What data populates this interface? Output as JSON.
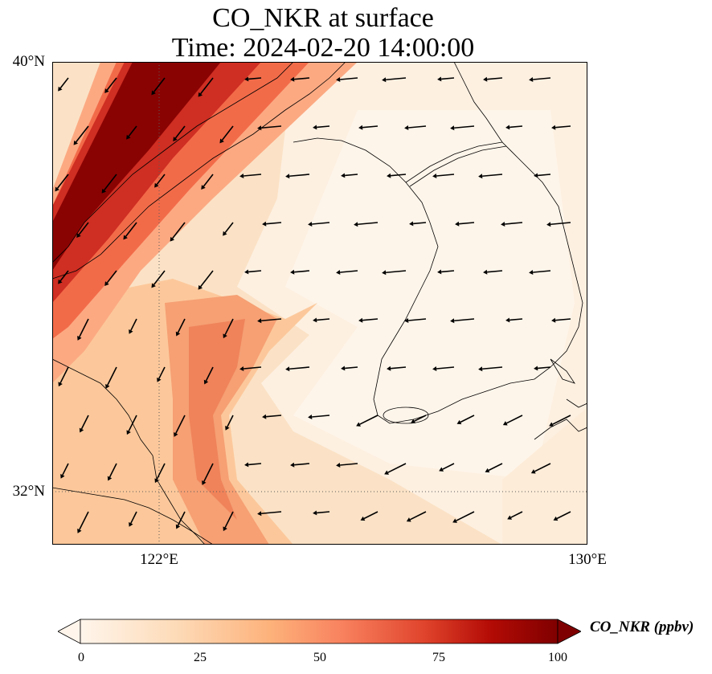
{
  "title": {
    "line1": "CO_NKR at surface",
    "line2": "Time: 2024-02-20 14:00:00"
  },
  "map": {
    "extent": {
      "lon_min": 119,
      "lon_max": 130,
      "lat_min": 31,
      "lat_max": 40
    },
    "gridlines": {
      "lons": [
        122
      ],
      "lats": [
        32
      ],
      "style": "dotted"
    },
    "lat_labels": [
      "40°N",
      "32°N"
    ],
    "lon_labels": [
      "122°E",
      "130°E"
    ],
    "field": "CO_NKR concentration",
    "wind_vectors": "southwesterly flow over the Yellow Sea, westerly-to-easterly arrows pointing toward west-southwest"
  },
  "colorbar": {
    "label": "CO_NKR (ppbv)",
    "ticks": [
      "0",
      "25",
      "50",
      "75",
      "100"
    ],
    "range": [
      0,
      100
    ],
    "extend": "both",
    "colormap": [
      "#fff5eb",
      "#fdd9b4",
      "#fdb97d",
      "#f8815e",
      "#e0442c",
      "#b30b05",
      "#7f0000"
    ]
  }
}
